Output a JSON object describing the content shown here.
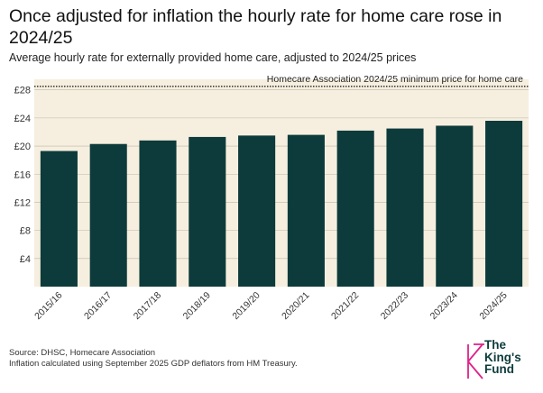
{
  "chart_data": {
    "type": "bar",
    "title": "Once adjusted for inflation the hourly rate for home care rose in 2024/25",
    "subtitle": "Average hourly rate for externally provided home care, adjusted to 2024/25 prices",
    "categories": [
      "2015/16",
      "2016/17",
      "2017/18",
      "2018/19",
      "2019/20",
      "2020/21",
      "2021/22",
      "2022/23",
      "2023/24",
      "2024/25"
    ],
    "values": [
      19.3,
      20.3,
      20.8,
      21.3,
      21.5,
      21.6,
      22.2,
      22.5,
      22.9,
      23.6
    ],
    "yticks": [
      "£4",
      "£8",
      "£12",
      "£16",
      "£20",
      "£24",
      "£28"
    ],
    "ylim": [
      0,
      29.5
    ],
    "reference_line": {
      "value": 28.5,
      "label": "Homecare Association 2024/25 minimum price for home care"
    },
    "bar_color": "#0d3b3b",
    "plot_background": "#f6efdf",
    "grid": true
  },
  "footer": {
    "source": "Source: DHSC, Homecare Association",
    "note": "Inflation calculated using September 2025 GDP deflators from HM Treasury."
  },
  "logo": {
    "line1": "The",
    "line2": "King's",
    "line3": "Fund",
    "color": "#e0218a"
  }
}
